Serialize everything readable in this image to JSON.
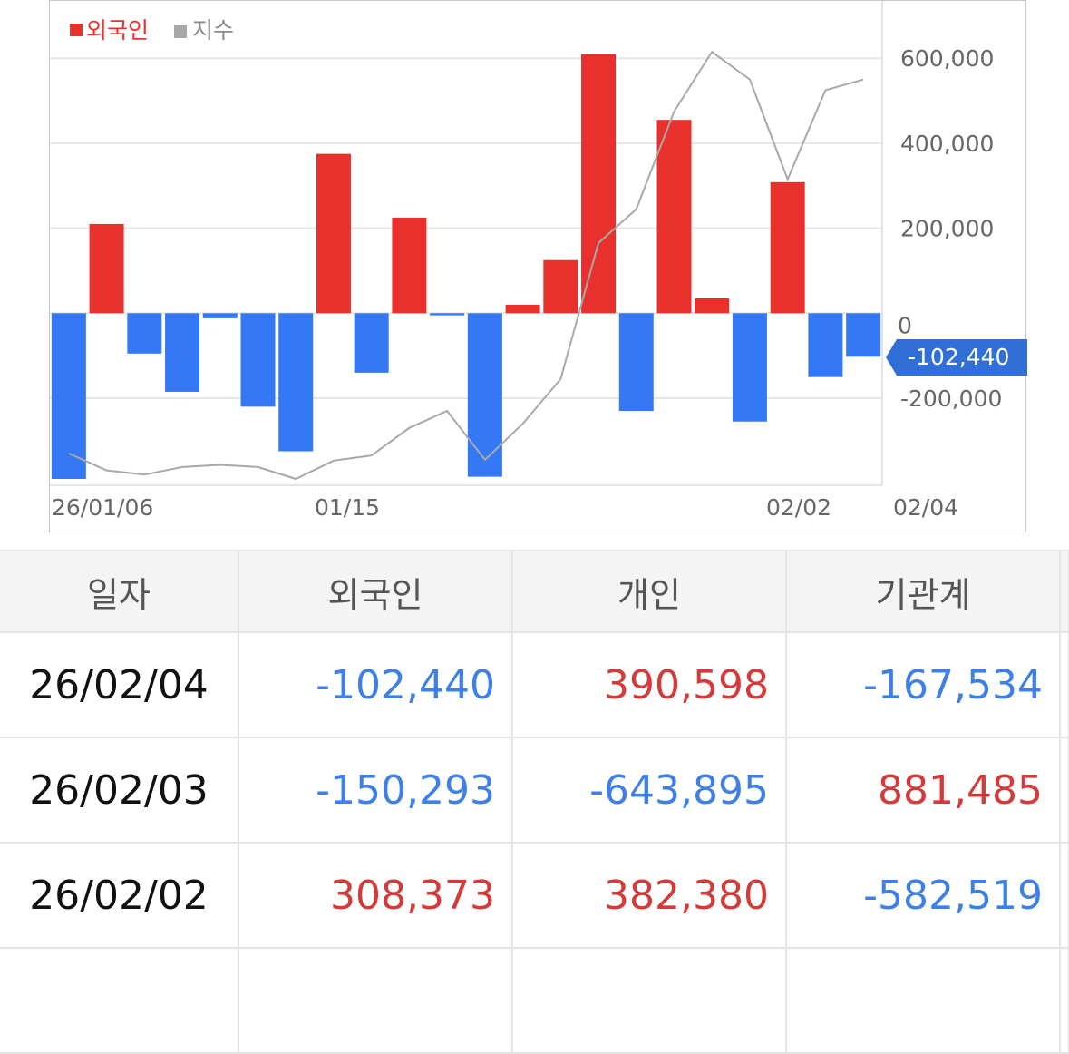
{
  "legend": {
    "foreign_label": "외국인",
    "index_label": "지수"
  },
  "colors": {
    "positive": "#e8312c",
    "negative": "#3478f6",
    "index_line": "#a8a8a8",
    "positive_text": "#d53a3a",
    "negative_text": "#3f7fe8"
  },
  "chart_data": {
    "type": "bar",
    "title": "",
    "series": [
      {
        "name": "외국인",
        "values": [
          -390000,
          210000,
          -95000,
          -185000,
          -12000,
          -220000,
          -325000,
          375000,
          -140000,
          225000,
          -5000,
          -385000,
          20000,
          125000,
          610000,
          -230000,
          455000,
          35000,
          -255000,
          308373,
          -150293,
          -102440
        ]
      },
      {
        "name": "지수",
        "line_values": [
          -330000,
          -370000,
          -380000,
          -362000,
          -357000,
          -362000,
          -390000,
          -347000,
          -335000,
          -270000,
          -230000,
          -345000,
          -260000,
          -155000,
          165000,
          245000,
          475000,
          615000,
          550000,
          315000,
          525000,
          550000
        ]
      }
    ],
    "x_tick_labels": [
      "26/01/06",
      "01/15",
      "02/02",
      "02/04"
    ],
    "y_tick_labels": [
      "600,000",
      "400,000",
      "200,000",
      "0",
      "-200,000"
    ],
    "y_ticks": [
      600000,
      400000,
      200000,
      0,
      -200000
    ],
    "ylim": [
      -405000,
      735000
    ],
    "last_value_label": "-102,440",
    "grid": true,
    "legend_position": "top-left"
  },
  "table": {
    "headers": [
      "일자",
      "외국인",
      "개인",
      "기관계"
    ],
    "rows": [
      {
        "date": "26/02/04",
        "foreign": "-102,440",
        "individual": "390,598",
        "institution": "-167,534"
      },
      {
        "date": "26/02/03",
        "foreign": "-150,293",
        "individual": "-643,895",
        "institution": "881,485"
      },
      {
        "date": "26/02/02",
        "foreign": "308,373",
        "individual": "382,380",
        "institution": "-582,519"
      }
    ]
  }
}
